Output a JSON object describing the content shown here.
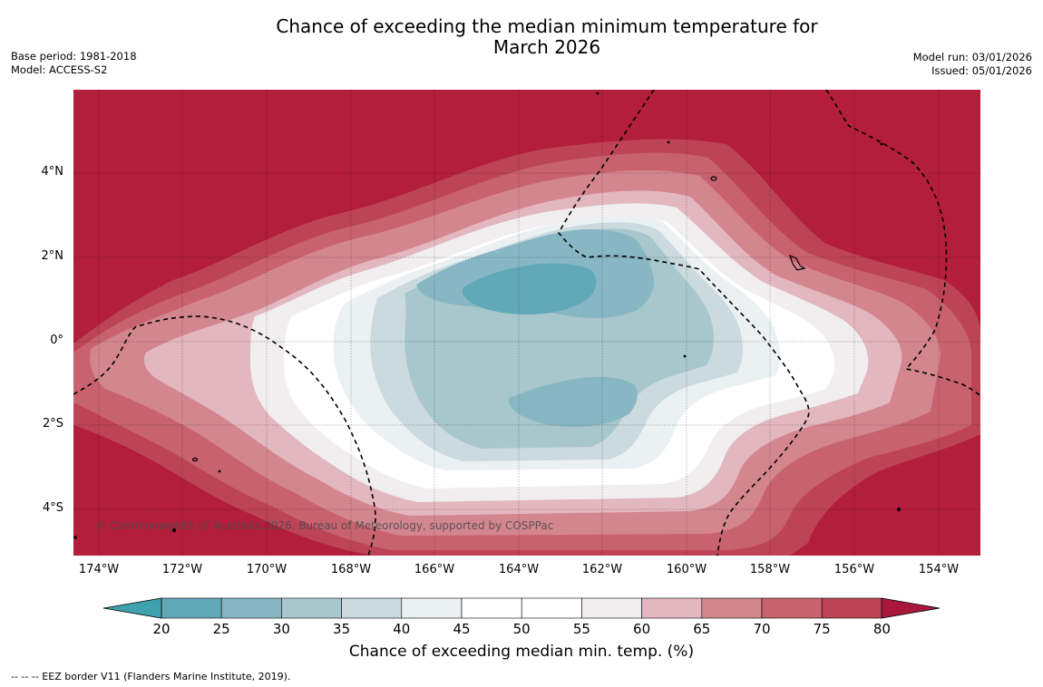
{
  "title": {
    "line1": "Chance of exceeding the median minimum temperature for",
    "line2": "March 2026"
  },
  "meta_left": {
    "base_period": "Base period: 1981-2018",
    "model": "Model: ACCESS-S2"
  },
  "meta_right": {
    "model_run": "Model run: 03/01/2026",
    "issued": "Issued: 05/01/2026"
  },
  "axes": {
    "lat_labels": [
      "4°N",
      "2°N",
      "0°",
      "2°S",
      "4°S"
    ],
    "lon_labels": [
      "174°W",
      "172°W",
      "170°W",
      "168°W",
      "166°W",
      "164°W",
      "162°W",
      "160°W",
      "158°W",
      "156°W",
      "154°W"
    ]
  },
  "copyright": "© Commonwealth of Australia 2026, Bureau of Meteorology, supported by COSPPac",
  "colorbar": {
    "ticks": [
      "20",
      "25",
      "30",
      "35",
      "40",
      "45",
      "50",
      "55",
      "60",
      "65",
      "70",
      "75",
      "80"
    ],
    "colors": [
      "#62a9b8",
      "#88b7c4",
      "#a8c7cc",
      "#cbdade",
      "#ebf1f3",
      "#ffffff",
      "#ffffff",
      "#f1eef0",
      "#e3b7bf",
      "#d4868f",
      "#c8626f",
      "#bd4457",
      "#b21e3b"
    ],
    "title": "Chance of exceeding median min. temp. (%)"
  },
  "footer": "--  --  -- EEZ border V11 (Flanders Marine Institute, 2019)."
}
